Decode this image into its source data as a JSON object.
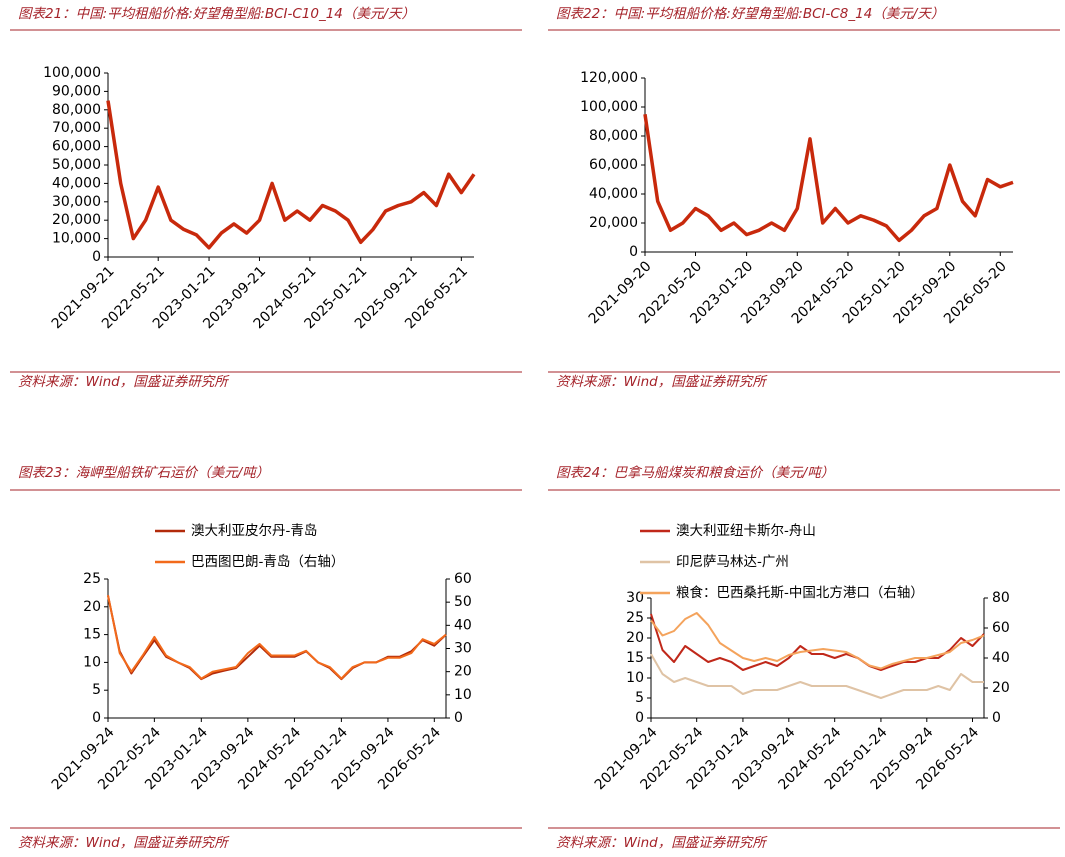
{
  "chart_data": [
    {
      "type": "line",
      "title": "图表21：中国:平均租船价格:好望角型船:BCI-C10_14（美元/天）",
      "source": "资料来源：Wind，国盛证券研究所",
      "x": [
        "2021-09-21",
        "2021-11-21",
        "2022-01-21",
        "2022-03-21",
        "2022-05-21",
        "2022-07-21",
        "2022-09-21",
        "2022-11-21",
        "2023-01-21",
        "2023-03-21",
        "2023-05-21",
        "2023-07-21",
        "2023-09-21",
        "2023-11-21",
        "2024-01-21",
        "2024-03-21",
        "2024-05-21",
        "2024-07-21",
        "2024-09-21",
        "2024-11-21",
        "2025-01-21",
        "2025-03-21",
        "2025-05-21",
        "2025-07-21",
        "2025-09-21",
        "2025-11-21",
        "2026-01-21",
        "2026-03-21",
        "2026-05-21",
        "2026-07-21"
      ],
      "series": [
        {
          "name": "BCI-C10_14",
          "color": "#c8290c",
          "values": [
            85000,
            40000,
            10000,
            20000,
            38000,
            20000,
            15000,
            12000,
            5000,
            13000,
            18000,
            13000,
            20000,
            40000,
            20000,
            25000,
            20000,
            28000,
            25000,
            20000,
            8000,
            15000,
            25000,
            28000,
            30000,
            35000,
            28000,
            45000,
            35000,
            45000
          ]
        }
      ],
      "xlim": [
        "2021-09-21",
        "2026-07-21"
      ],
      "xticks": [
        "2021-09-21",
        "2022-05-21",
        "2023-01-21",
        "2023-09-21",
        "2024-05-21",
        "2025-01-21",
        "2025-09-21",
        "2026-05-21"
      ],
      "ylim": [
        0,
        100000
      ],
      "yticks": [
        0,
        {
          "value": 10000,
          "label": "10,000"
        },
        {
          "value": 20000,
          "label": "20,000"
        },
        {
          "value": 30000,
          "label": "30,000"
        },
        {
          "value": 40000,
          "label": "40,000"
        },
        {
          "value": 50000,
          "label": "50,000"
        },
        {
          "value": 60000,
          "label": "60,000"
        },
        {
          "value": 70000,
          "label": "70,000"
        },
        {
          "value": 80000,
          "label": "80,000"
        },
        {
          "value": 90000,
          "label": "90,000"
        },
        {
          "value": 100000,
          "label": "100,000"
        }
      ]
    },
    {
      "type": "line",
      "title": "图表22：中国:平均租船价格:好望角型船:BCI-C8_14（美元/天）",
      "source": "资料来源：Wind，国盛证券研究所",
      "x": [
        "2021-09-20",
        "2021-11-20",
        "2022-01-20",
        "2022-03-20",
        "2022-05-20",
        "2022-07-20",
        "2022-09-20",
        "2022-11-20",
        "2023-01-20",
        "2023-03-20",
        "2023-05-20",
        "2023-07-20",
        "2023-09-20",
        "2023-11-20",
        "2024-01-20",
        "2024-03-20",
        "2024-05-20",
        "2024-07-20",
        "2024-09-20",
        "2024-11-20",
        "2025-01-20",
        "2025-03-20",
        "2025-05-20",
        "2025-07-20",
        "2025-09-20",
        "2025-11-20",
        "2026-01-20",
        "2026-03-20",
        "2026-05-20",
        "2026-07-20"
      ],
      "series": [
        {
          "name": "BCI-C8_14",
          "color": "#c8290c",
          "values": [
            95000,
            35000,
            15000,
            20000,
            30000,
            25000,
            15000,
            20000,
            12000,
            15000,
            20000,
            15000,
            30000,
            78000,
            20000,
            30000,
            20000,
            25000,
            22000,
            18000,
            8000,
            15000,
            25000,
            30000,
            60000,
            35000,
            25000,
            50000,
            45000,
            48000
          ]
        }
      ],
      "xlim": [
        "2021-09-20",
        "2026-07-20"
      ],
      "xticks": [
        "2021-09-20",
        "2022-05-20",
        "2023-01-20",
        "2023-09-20",
        "2024-05-20",
        "2025-01-20",
        "2025-09-20",
        "2026-05-20"
      ],
      "ylim": [
        0,
        120000
      ],
      "yticks": [
        0,
        {
          "value": 20000,
          "label": "20,000"
        },
        {
          "value": 40000,
          "label": "40,000"
        },
        {
          "value": 60000,
          "label": "60,000"
        },
        {
          "value": 80000,
          "label": "80,000"
        },
        {
          "value": 100000,
          "label": "100,000"
        },
        {
          "value": 120000,
          "label": "120,000"
        }
      ]
    },
    {
      "type": "line",
      "title": "图表23：海岬型船铁矿石运价（美元/吨）",
      "source": "资料来源：Wind，国盛证券研究所",
      "x": [
        "2021-09-24",
        "2021-11-24",
        "2022-01-24",
        "2022-03-24",
        "2022-05-24",
        "2022-07-24",
        "2022-09-24",
        "2022-11-24",
        "2023-01-24",
        "2023-03-24",
        "2023-05-24",
        "2023-07-24",
        "2023-09-24",
        "2023-11-24",
        "2024-01-24",
        "2024-03-24",
        "2024-05-24",
        "2024-07-24",
        "2024-09-24",
        "2024-11-24",
        "2025-01-24",
        "2025-03-24",
        "2025-05-24",
        "2025-07-24",
        "2025-09-24",
        "2025-11-24",
        "2026-01-24",
        "2026-03-24",
        "2026-05-24",
        "2026-07-24"
      ],
      "series": [
        {
          "name": "澳大利亚皮尔丹-青岛",
          "color": "#b22a0a",
          "values": [
            22,
            12,
            8,
            11,
            14,
            11,
            10,
            9,
            7,
            8,
            8.5,
            9,
            11,
            13,
            11,
            11,
            11,
            12,
            10,
            9,
            7,
            9,
            10,
            10,
            11,
            11,
            12,
            14,
            13,
            15
          ]
        },
        {
          "name": "巴西图巴朗-青岛（右轴）",
          "color": "#f26a1b",
          "axis": "y2",
          "values": [
            53,
            28,
            20,
            27,
            35,
            27,
            24,
            22,
            17,
            20,
            21,
            22,
            28,
            32,
            27,
            27,
            27,
            29,
            24,
            22,
            17,
            22,
            24,
            24,
            26,
            26,
            28,
            34,
            32,
            36
          ]
        }
      ],
      "xlim": [
        "2021-09-24",
        "2026-07-24"
      ],
      "xticks": [
        "2021-09-24",
        "2022-05-24",
        "2023-01-24",
        "2023-09-24",
        "2024-05-24",
        "2025-01-24",
        "2025-09-24",
        "2026-05-24"
      ],
      "ylim": [
        0,
        25
      ],
      "yticks": [
        0,
        5,
        10,
        15,
        20,
        25
      ],
      "y2lim": [
        0,
        60
      ],
      "y2ticks": [
        0,
        10,
        20,
        30,
        40,
        50,
        60
      ]
    },
    {
      "type": "line",
      "title": "图表24：巴拿马船煤炭和粮食运价（美元/吨）",
      "source": "资料来源：Wind，国盛证券研究所",
      "x": [
        "2021-09-24",
        "2021-11-24",
        "2022-01-24",
        "2022-03-24",
        "2022-05-24",
        "2022-07-24",
        "2022-09-24",
        "2022-11-24",
        "2023-01-24",
        "2023-03-24",
        "2023-05-24",
        "2023-07-24",
        "2023-09-24",
        "2023-11-24",
        "2024-01-24",
        "2024-03-24",
        "2024-05-24",
        "2024-07-24",
        "2024-09-24",
        "2024-11-24",
        "2025-01-24",
        "2025-03-24",
        "2025-05-24",
        "2025-07-24",
        "2025-09-24",
        "2025-11-24",
        "2026-01-24",
        "2026-03-24",
        "2026-05-24",
        "2026-07-24"
      ],
      "series": [
        {
          "name": "澳大利亚纽卡斯尔-舟山",
          "color": "#c0281a",
          "values": [
            26,
            17,
            14,
            18,
            16,
            14,
            15,
            14,
            12,
            13,
            14,
            13,
            15,
            18,
            16,
            16,
            15,
            16,
            15,
            13,
            12,
            13,
            14,
            14,
            15,
            15,
            17,
            20,
            18,
            21
          ]
        },
        {
          "name": "印尼萨马林达-广州",
          "color": "#dfc3a5",
          "values": [
            16,
            11,
            9,
            10,
            9,
            8,
            8,
            8,
            6,
            7,
            7,
            7,
            8,
            9,
            8,
            8,
            8,
            8,
            7,
            6,
            5,
            6,
            7,
            7,
            7,
            8,
            7,
            11,
            9,
            9
          ]
        },
        {
          "name": "粮食：巴西桑托斯-中国北方港口（右轴）",
          "color": "#f4a35c",
          "axis": "y2",
          "values": [
            65,
            55,
            58,
            66,
            70,
            62,
            50,
            45,
            40,
            38,
            40,
            38,
            42,
            44,
            45,
            46,
            45,
            44,
            40,
            35,
            33,
            36,
            38,
            40,
            40,
            42,
            44,
            50,
            52,
            55
          ]
        }
      ],
      "xlim": [
        "2021-09-24",
        "2026-07-24"
      ],
      "xticks": [
        "2021-09-24",
        "2022-05-24",
        "2023-01-24",
        "2023-09-24",
        "2024-05-24",
        "2025-01-24",
        "2025-09-24",
        "2026-05-24"
      ],
      "ylim": [
        0,
        30
      ],
      "yticks": [
        0,
        5,
        10,
        15,
        20,
        25,
        30
      ],
      "y2lim": [
        0,
        80
      ],
      "y2ticks": [
        0,
        20,
        40,
        60,
        80
      ]
    }
  ]
}
